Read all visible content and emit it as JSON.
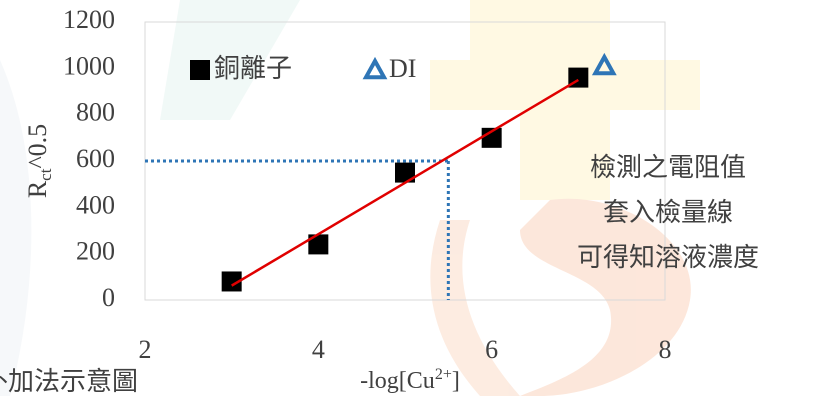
{
  "chart_data": {
    "type": "scatter",
    "xlabel": {
      "main": "-log[Cu",
      "sup": "2+",
      "end": "]"
    },
    "ylabel": {
      "main": "R",
      "sub": "ct",
      "end": "^0.5"
    },
    "xlim": [
      2,
      8
    ],
    "xticks": [
      2,
      4,
      6,
      8
    ],
    "ylim": [
      0,
      1200
    ],
    "yticks": [
      0,
      200,
      400,
      600,
      800,
      1000,
      1200
    ],
    "grid": false,
    "series": [
      {
        "name": "銅離子",
        "marker": "square",
        "color": "#000000",
        "x": [
          3,
          4,
          5,
          6,
          7
        ],
        "values": [
          80,
          240,
          550,
          700,
          960
        ]
      },
      {
        "name": "DI",
        "marker": "triangle",
        "color": "#2e75b6",
        "x": [
          7.3
        ],
        "values": [
          1010
        ]
      }
    ],
    "trendline": {
      "color": "#e00000",
      "x": [
        3,
        7
      ],
      "values": [
        62,
        950
      ]
    },
    "reference": {
      "color": "#2e75b6",
      "x": 5.5,
      "y": 600
    },
    "annotation": [
      "檢測之電阻值",
      "套入檢量線",
      "可得知溶液濃度"
    ],
    "caption": "外加法示意圖"
  }
}
